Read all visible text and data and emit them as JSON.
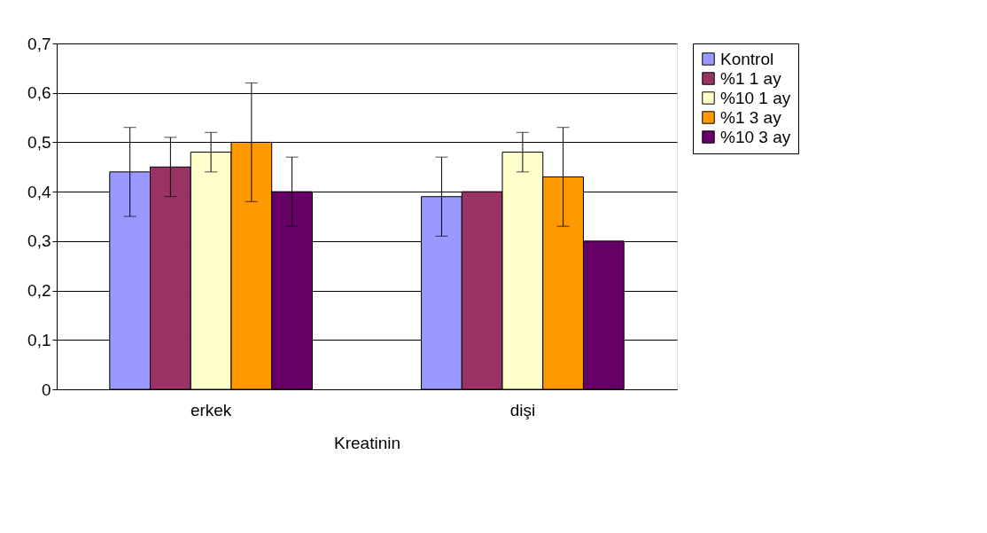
{
  "chart_data": {
    "type": "bar",
    "categories": [
      "erkek",
      "dişi"
    ],
    "xlabel": "Kreatinin",
    "ylim": [
      0,
      0.7
    ],
    "yticks": [
      0,
      {
        "value": 0.1,
        "label": "0,1"
      },
      {
        "value": 0.2,
        "label": "0,2"
      },
      {
        "value": 0.3,
        "label": "0,3"
      },
      {
        "value": 0.4,
        "label": "0,4"
      },
      {
        "value": 0.5,
        "label": "0,5"
      },
      {
        "value": 0.6,
        "label": "0,6"
      },
      {
        "value": 0.7,
        "label": "0,7"
      }
    ],
    "grid": "y",
    "legend": "right",
    "series": [
      {
        "name": "Kontrol",
        "color": "#9999ff",
        "values": [
          0.44,
          0.39
        ],
        "errors": [
          [
            0.35,
            0.53
          ],
          [
            0.31,
            0.47
          ]
        ]
      },
      {
        "name": "%1 1 ay",
        "color": "#993366",
        "values": [
          0.45,
          0.4
        ],
        "errors": [
          [
            0.39,
            0.51
          ],
          null
        ]
      },
      {
        "name": "%10 1 ay",
        "color": "#ffffcc",
        "values": [
          0.48,
          0.48
        ],
        "errors": [
          [
            0.44,
            0.52
          ],
          [
            0.44,
            0.52
          ]
        ]
      },
      {
        "name": "%1 3 ay",
        "color": "#ff9900",
        "values": [
          0.5,
          0.43
        ],
        "errors": [
          [
            0.38,
            0.62
          ],
          [
            0.33,
            0.53
          ]
        ]
      },
      {
        "name": "%10 3 ay",
        "color": "#660066",
        "values": [
          0.4,
          0.3
        ],
        "errors": [
          [
            0.33,
            0.47
          ],
          null
        ]
      }
    ]
  }
}
